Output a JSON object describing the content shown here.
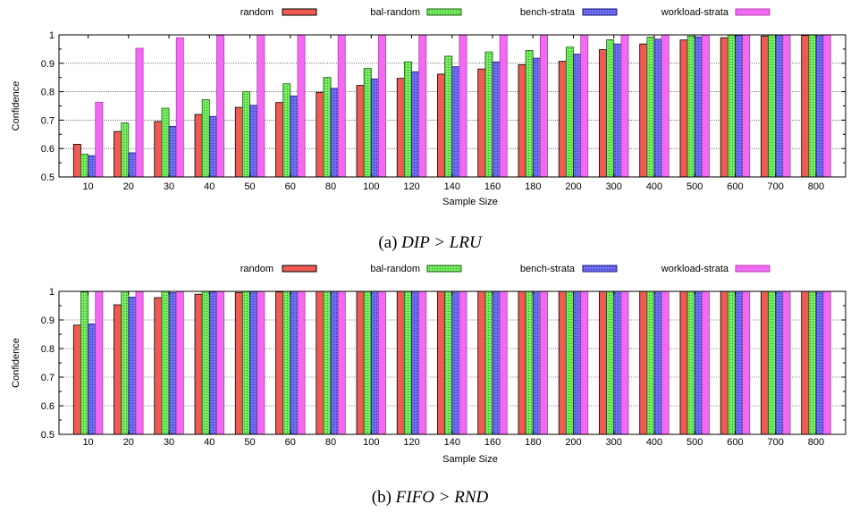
{
  "colors": {
    "random": "#ef5a52",
    "bal-random": "#74ee5e",
    "bench-strata": "#6f6ef0",
    "workload-strata": "#f26af2"
  },
  "chart_data": [
    {
      "type": "bar",
      "caption_prefix": "(a) ",
      "caption": "DIP > LRU",
      "xlabel": "Sample Size",
      "ylabel": "Confidence",
      "ylim": [
        0.5,
        1.0
      ],
      "yticks": [
        "0.5",
        "0.6",
        "0.7",
        "0.8",
        "0.9",
        "1"
      ],
      "grid": true,
      "legend_position": "top",
      "categories": [
        "10",
        "20",
        "30",
        "40",
        "50",
        "60",
        "80",
        "100",
        "120",
        "140",
        "160",
        "180",
        "200",
        "300",
        "400",
        "500",
        "600",
        "700",
        "800"
      ],
      "series": [
        {
          "name": "random",
          "values": [
            0.615,
            0.66,
            0.695,
            0.72,
            0.745,
            0.762,
            0.798,
            0.822,
            0.847,
            0.862,
            0.88,
            0.895,
            0.907,
            0.948,
            0.968,
            0.982,
            0.99,
            0.996,
            0.998
          ]
        },
        {
          "name": "bal-random",
          "values": [
            0.58,
            0.69,
            0.742,
            0.772,
            0.8,
            0.828,
            0.85,
            0.882,
            0.905,
            0.925,
            0.94,
            0.945,
            0.957,
            0.983,
            0.992,
            0.996,
            0.999,
            1.0,
            1.0
          ]
        },
        {
          "name": "bench-strata",
          "values": [
            0.575,
            0.585,
            0.678,
            0.713,
            0.752,
            0.785,
            0.812,
            0.845,
            0.87,
            0.888,
            0.905,
            0.918,
            0.932,
            0.968,
            0.985,
            0.993,
            0.998,
            1.0,
            1.0
          ]
        },
        {
          "name": "workload-strata",
          "values": [
            0.763,
            0.953,
            0.99,
            0.998,
            1.0,
            1.0,
            1.0,
            1.0,
            1.0,
            1.0,
            1.0,
            1.0,
            1.0,
            1.0,
            1.0,
            1.0,
            1.0,
            1.0,
            1.0
          ]
        }
      ]
    },
    {
      "type": "bar",
      "caption_prefix": "(b) ",
      "caption": "FIFO > RND",
      "xlabel": "Sample Size",
      "ylabel": "Confidence",
      "ylim": [
        0.5,
        1.0
      ],
      "yticks": [
        "0.5",
        "0.6",
        "0.7",
        "0.8",
        "0.9",
        "1"
      ],
      "grid": true,
      "legend_position": "top",
      "categories": [
        "10",
        "20",
        "30",
        "40",
        "50",
        "60",
        "80",
        "100",
        "120",
        "140",
        "160",
        "180",
        "200",
        "300",
        "400",
        "500",
        "600",
        "700",
        "800"
      ],
      "series": [
        {
          "name": "random",
          "values": [
            0.882,
            0.953,
            0.978,
            0.99,
            0.996,
            0.998,
            1.0,
            1.0,
            1.0,
            1.0,
            1.0,
            1.0,
            1.0,
            1.0,
            1.0,
            1.0,
            1.0,
            1.0,
            1.0
          ]
        },
        {
          "name": "bal-random",
          "values": [
            0.998,
            1.0,
            1.0,
            1.0,
            1.0,
            1.0,
            1.0,
            1.0,
            1.0,
            1.0,
            1.0,
            1.0,
            1.0,
            1.0,
            1.0,
            1.0,
            1.0,
            1.0,
            1.0
          ]
        },
        {
          "name": "bench-strata",
          "values": [
            0.886,
            0.98,
            0.995,
            0.998,
            0.999,
            1.0,
            1.0,
            1.0,
            1.0,
            1.0,
            1.0,
            1.0,
            1.0,
            1.0,
            1.0,
            1.0,
            1.0,
            1.0,
            1.0
          ]
        },
        {
          "name": "workload-strata",
          "values": [
            1.0,
            1.0,
            1.0,
            1.0,
            1.0,
            1.0,
            1.0,
            1.0,
            1.0,
            1.0,
            1.0,
            1.0,
            1.0,
            1.0,
            1.0,
            1.0,
            1.0,
            1.0,
            1.0
          ]
        }
      ]
    }
  ]
}
